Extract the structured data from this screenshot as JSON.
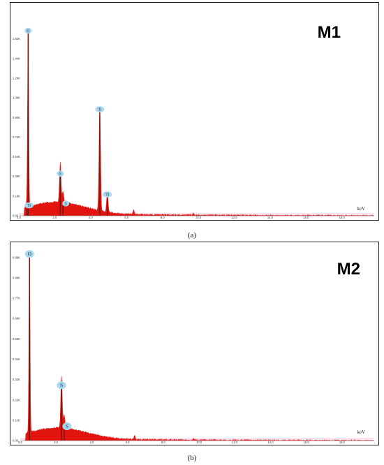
{
  "chart_data": [
    {
      "type": "area",
      "panel_label": "M1",
      "caption": "(a)",
      "xlabel": "keV",
      "xlim": [
        0.0,
        19.8
      ],
      "ylim": [
        0,
        1.9
      ],
      "x_ticks": [
        "0.0",
        "2.0",
        "4.0",
        "6.0",
        "8.0",
        "10.0",
        "12.0",
        "14.0",
        "16.0",
        "18.0"
      ],
      "y_ticks": [
        "0.00",
        "0.18K",
        "0.36K",
        "0.54K",
        "0.72K",
        "0.90K",
        "1.08K",
        "1.26K",
        "1.44K",
        "1.62K"
      ],
      "y_tick_values": [
        0,
        0.18,
        0.36,
        0.54,
        0.72,
        0.9,
        1.08,
        1.26,
        1.44,
        1.62
      ],
      "x_tick_values": [
        0,
        2,
        4,
        6,
        8,
        10,
        12,
        14,
        16,
        18
      ],
      "spectrum_color": "#e2140f",
      "peak_line_color": "#7a0f05",
      "label_bubble_color": "#a9d8ee",
      "peaks": [
        {
          "element": "O",
          "energy": 0.52,
          "counts": 1.67
        },
        {
          "element": "Ti",
          "energy": 0.45,
          "counts": 0.06
        },
        {
          "element": "S",
          "energy": 2.31,
          "counts": 0.36
        },
        {
          "element": "S",
          "energy": 2.46,
          "counts": 0.1
        },
        {
          "element": "Ti",
          "energy": 4.51,
          "counts": 0.95
        },
        {
          "element": "Ti",
          "energy": 4.93,
          "counts": 0.17
        }
      ]
    },
    {
      "type": "area",
      "panel_label": "M2",
      "caption": "(b)",
      "xlabel": "keV",
      "xlim": [
        0.0,
        19.8
      ],
      "ylim": [
        0,
        1.05
      ],
      "x_ticks": [
        "0.0",
        "2.0",
        "4.0",
        "6.0",
        "8.0",
        "10.0",
        "12.0",
        "14.0",
        "16.0",
        "18.0"
      ],
      "y_ticks": [
        "0.00",
        "0.11K",
        "0.22K",
        "0.33K",
        "0.44K",
        "0.55K",
        "0.66K",
        "0.77K",
        "0.88K",
        "0.99K"
      ],
      "y_tick_values": [
        0,
        0.11,
        0.22,
        0.33,
        0.44,
        0.55,
        0.66,
        0.77,
        0.88,
        0.99
      ],
      "x_tick_values": [
        0,
        2,
        4,
        6,
        8,
        10,
        12,
        14,
        16,
        18
      ],
      "spectrum_color": "#e2140f",
      "peak_line_color": "#7a0f05",
      "label_bubble_color": "#a9d8ee",
      "peaks": [
        {
          "element": "O",
          "energy": 0.52,
          "counts": 0.99
        },
        {
          "element": "S",
          "energy": 2.31,
          "counts": 0.28
        },
        {
          "element": "S",
          "energy": 2.46,
          "counts": 0.07
        }
      ]
    }
  ]
}
